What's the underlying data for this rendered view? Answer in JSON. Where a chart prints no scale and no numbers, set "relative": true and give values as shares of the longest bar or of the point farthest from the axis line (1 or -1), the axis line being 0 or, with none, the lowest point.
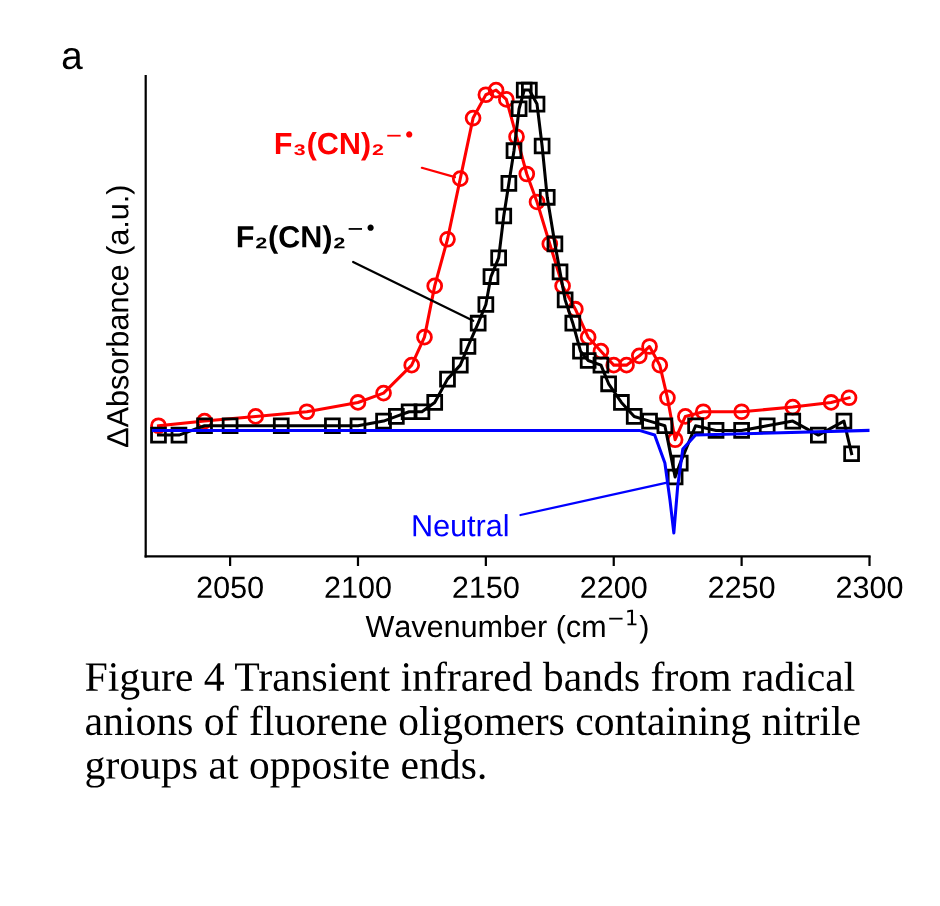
{
  "chart_data": {
    "type": "line",
    "relative": true,
    "xlabel": "Wavenumber (cm$^{−1}$)",
    "ylabel": "ΔAbsorbance (a.u.)",
    "xlim": [
      2017,
      2300
    ],
    "xticks": [
      2050,
      2100,
      2150,
      2200,
      2250,
      2300
    ],
    "grid": false,
    "legend": false,
    "series": [
      {
        "name": "F₃(CN)₂$^{−•}$",
        "color": "#ff0000",
        "marker": "circle",
        "x": [
          2022,
          2040,
          2060,
          2080,
          2100,
          2110,
          2121,
          2126,
          2130,
          2135,
          2140,
          2145,
          2150,
          2154,
          2158,
          2162,
          2166,
          2170,
          2175,
          2180,
          2185,
          2190,
          2195,
          2200,
          2205,
          2210,
          2214,
          2218,
          2221,
          2224,
          2228,
          2235,
          2250,
          2270,
          2285,
          2292
        ],
        "values": [
          0.28,
          0.29,
          0.3,
          0.31,
          0.33,
          0.35,
          0.41,
          0.47,
          0.58,
          0.68,
          0.81,
          0.94,
          0.99,
          1.0,
          0.98,
          0.9,
          0.82,
          0.76,
          0.67,
          0.58,
          0.53,
          0.47,
          0.44,
          0.41,
          0.41,
          0.43,
          0.45,
          0.41,
          0.34,
          0.25,
          0.3,
          0.31,
          0.31,
          0.32,
          0.33,
          0.34
        ]
      },
      {
        "name": "F₂(CN)₂$^{−•}$",
        "color": "#000000",
        "marker": "square",
        "x": [
          2022,
          2030,
          2040,
          2050,
          2070,
          2090,
          2100,
          2110,
          2115,
          2120,
          2125,
          2130,
          2135,
          2140,
          2143,
          2147,
          2150,
          2152,
          2155,
          2157,
          2159,
          2161,
          2163,
          2165,
          2167,
          2170,
          2172,
          2174,
          2177,
          2179,
          2181,
          2184,
          2187,
          2190,
          2195,
          2198,
          2203,
          2208,
          2214,
          2220,
          2224,
          2226,
          2232,
          2240,
          2250,
          2260,
          2270,
          2280,
          2290,
          2293
        ],
        "values": [
          0.26,
          0.26,
          0.28,
          0.28,
          0.28,
          0.28,
          0.28,
          0.29,
          0.3,
          0.31,
          0.31,
          0.33,
          0.38,
          0.41,
          0.45,
          0.5,
          0.54,
          0.6,
          0.64,
          0.73,
          0.8,
          0.87,
          0.96,
          1.0,
          1.0,
          0.97,
          0.88,
          0.77,
          0.67,
          0.61,
          0.55,
          0.5,
          0.44,
          0.42,
          0.41,
          0.37,
          0.33,
          0.3,
          0.29,
          0.28,
          0.17,
          0.2,
          0.28,
          0.27,
          0.27,
          0.28,
          0.29,
          0.26,
          0.29,
          0.22
        ]
      },
      {
        "name": "Neutral",
        "color": "#0000ff",
        "marker": "none",
        "x": [
          2020,
          2100,
          2210,
          2216,
          2220,
          2222,
          2223.5,
          2225,
          2227,
          2232,
          2300
        ],
        "values": [
          0.27,
          0.27,
          0.27,
          0.26,
          0.2,
          0.12,
          0.05,
          0.15,
          0.23,
          0.26,
          0.27
        ]
      }
    ],
    "annotations": [
      "a",
      "Figure 4 Transient infrared bands from radical anions of fluorene oligomers containing nitrile groups at opposite ends."
    ]
  }
}
